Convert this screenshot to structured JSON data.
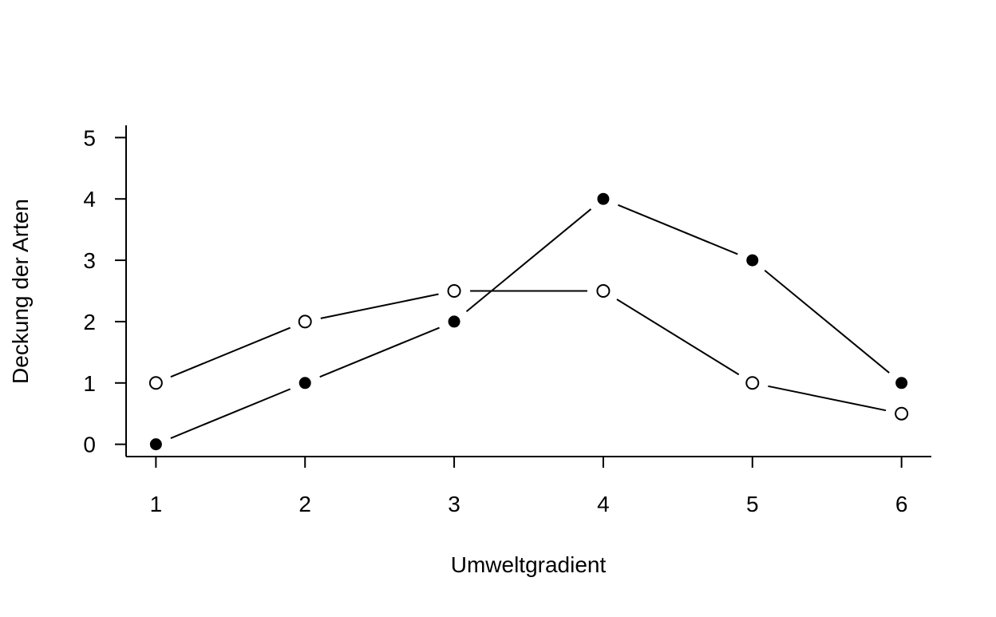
{
  "chart_data": {
    "type": "line",
    "title": "",
    "xlabel": "Umweltgradient",
    "ylabel": "Deckung der Arten",
    "x": [
      1,
      2,
      3,
      4,
      5,
      6
    ],
    "x_ticks": [
      "1",
      "2",
      "3",
      "4",
      "5",
      "6"
    ],
    "y_ticks": [
      "0",
      "1",
      "2",
      "3",
      "4",
      "5"
    ],
    "xlim": [
      0.8,
      6.2
    ],
    "ylim": [
      -0.2,
      5.2
    ],
    "grid": false,
    "legend": "none",
    "series": [
      {
        "marker": "open-circle",
        "color": "#000000",
        "values": [
          1,
          2,
          2.5,
          2.5,
          1,
          0.5
        ]
      },
      {
        "marker": "filled-circle",
        "color": "#000000",
        "values": [
          0,
          1,
          2,
          4,
          3,
          1
        ]
      }
    ]
  }
}
